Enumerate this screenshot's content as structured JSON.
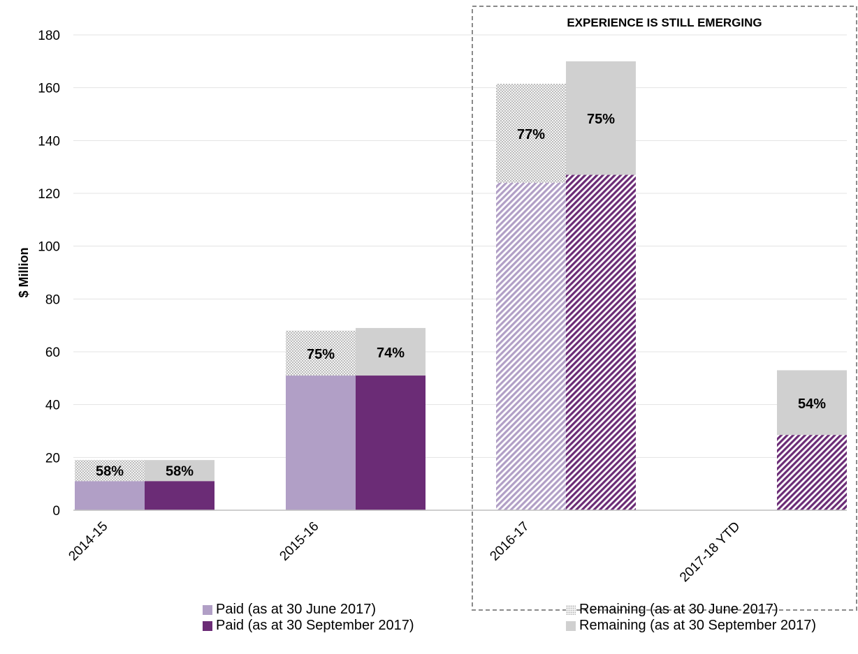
{
  "chart_data": {
    "type": "bar",
    "stacked_grouped": true,
    "ylabel": "$ Million",
    "ylim": [
      0,
      180
    ],
    "yticks": [
      0,
      20,
      40,
      60,
      80,
      100,
      120,
      140,
      160,
      180
    ],
    "grid": true,
    "categories": [
      "2014-15",
      "2015-16",
      "2016-17",
      "2017-18 YTD"
    ],
    "emphasis_label": "EXPERIENCE IS STILL EMERGING",
    "emphasis_categories": [
      "2016-17",
      "2017-18 YTD"
    ],
    "groups": [
      {
        "name": "as at 30 June 2017",
        "paid": [
          11,
          51,
          124,
          null
        ],
        "remaining": [
          8,
          17,
          37.5,
          null
        ],
        "paid_percent_labels": [
          "58%",
          "75%",
          "77%",
          null
        ],
        "colors": {
          "paid": "#b19fc6",
          "remaining": "#d9d9d9"
        }
      },
      {
        "name": "as at 30 September 2017",
        "paid": [
          11,
          51,
          127,
          28.5
        ],
        "remaining": [
          8,
          18,
          43,
          24.5
        ],
        "paid_percent_labels": [
          "58%",
          "74%",
          "75%",
          "54%"
        ],
        "colors": {
          "paid": "#6b2c76",
          "remaining": "#d0d0d0"
        }
      }
    ],
    "legend": {
      "placement": "bottom",
      "entries": [
        {
          "label": "Paid (as at 30 June 2017)",
          "color": "#b19fc6",
          "style": "solid"
        },
        {
          "label": "Paid (as at 30 September 2017)",
          "color": "#6b2c76",
          "style": "solid"
        },
        {
          "label": "Remaining (as at 30 June 2017)",
          "color": "#d9d9d9",
          "style": "dotted"
        },
        {
          "label": "Remaining (as at 30 September 2017)",
          "color": "#d0d0d0",
          "style": "solid"
        }
      ]
    }
  }
}
